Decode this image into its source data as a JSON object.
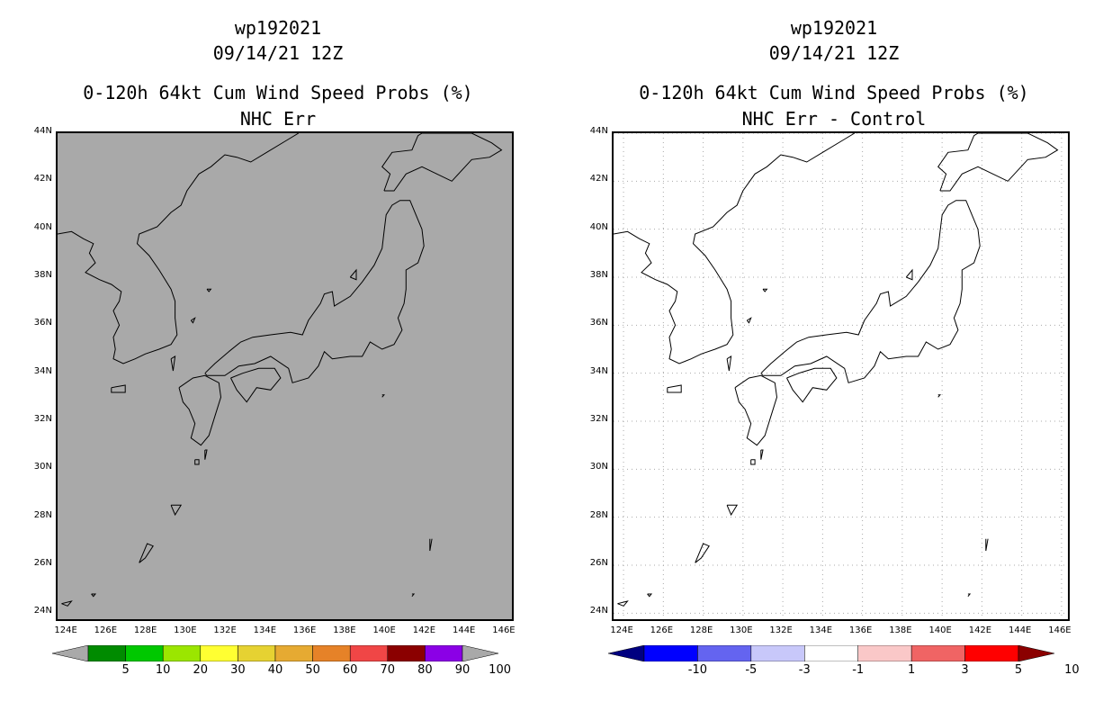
{
  "panels": [
    {
      "id": "left",
      "title_lines": [
        "wp192021",
        "09/14/21 12Z",
        "0-120h 64kt Cum Wind Speed Probs (%)",
        "NHC Err"
      ],
      "map_fill": "#a9a9a9",
      "gridlines": false,
      "colorbar": {
        "colors": [
          "#a9a9a9",
          "#008b00",
          "#00c800",
          "#9be600",
          "#ffff32",
          "#e6d232",
          "#e6aa32",
          "#e68228",
          "#f04646",
          "#8b0000",
          "#8b00e6",
          "#a9a9a9"
        ],
        "labels": [
          "5",
          "10",
          "20",
          "30",
          "40",
          "50",
          "60",
          "70",
          "80",
          "90",
          "100"
        ]
      }
    },
    {
      "id": "right",
      "title_lines": [
        "wp192021",
        "09/14/21 12Z",
        "0-120h 64kt Cum Wind Speed Probs (%)",
        "NHC Err - Control"
      ],
      "map_fill": "#ffffff",
      "gridlines": true,
      "colorbar": {
        "colors": [
          "#000080",
          "#0000ff",
          "#6464f0",
          "#c8c8fa",
          "#ffffff",
          "#fac8c8",
          "#f06464",
          "#ff0000",
          "#8b0000"
        ],
        "labels": [
          "-10",
          "-5",
          "-3",
          "-1",
          "1",
          "3",
          "5",
          "10"
        ]
      }
    }
  ],
  "lat_labels": [
    "44N",
    "42N",
    "40N",
    "38N",
    "36N",
    "34N",
    "32N",
    "30N",
    "28N",
    "26N",
    "24N"
  ],
  "lon_labels": [
    "124E",
    "126E",
    "128E",
    "130E",
    "132E",
    "134E",
    "136E",
    "138E",
    "140E",
    "142E",
    "144E",
    "146E"
  ],
  "map_extent": {
    "lon": [
      123.5,
      146.5
    ],
    "lat": [
      23.6,
      44
    ]
  }
}
